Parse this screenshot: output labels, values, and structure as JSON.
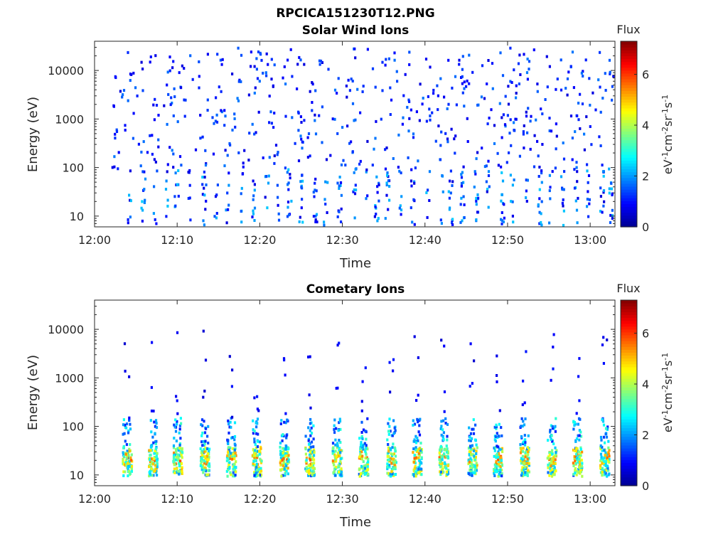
{
  "figure_title": "RPCICA151230T12.PNG",
  "colors": {
    "colormap": [
      "#00008f",
      "#0000ff",
      "#0080ff",
      "#00ffff",
      "#80ff80",
      "#ffff00",
      "#ff8000",
      "#ff0000",
      "#800000"
    ]
  },
  "chart_data": [
    {
      "type": "heatmap",
      "title": "Solar Wind Ions",
      "xlabel": "Time",
      "ylabel": "Energy (eV)",
      "xlim": [
        "12:00",
        "13:03"
      ],
      "ylim": [
        6,
        40000
      ],
      "yscale": "log",
      "x_ticks": [
        "12:00",
        "12:10",
        "12:20",
        "12:30",
        "12:40",
        "12:50",
        "13:00"
      ],
      "y_ticks": [
        10,
        100,
        1000,
        10000
      ],
      "y_tick_labels": [
        "10",
        "100",
        "1000",
        "10000"
      ],
      "colorbar": {
        "title": "Flux",
        "label": "eV-1cm-2sr-1s-1",
        "range": [
          0,
          7.3
        ],
        "ticks": [
          0,
          2,
          4,
          6
        ]
      },
      "pattern": "sparse dots at 100-40000 eV with denser low-flux columns below 40 eV"
    },
    {
      "type": "heatmap",
      "title": "Cometary Ions",
      "xlabel": "Time",
      "ylabel": "Energy (eV)",
      "xlim": [
        "12:00",
        "13:03"
      ],
      "ylim": [
        6,
        40000
      ],
      "yscale": "log",
      "x_ticks": [
        "12:00",
        "12:10",
        "12:20",
        "12:30",
        "12:40",
        "12:50",
        "13:00"
      ],
      "y_ticks": [
        10,
        100,
        1000,
        10000
      ],
      "y_tick_labels": [
        "10",
        "100",
        "1000",
        "10000"
      ],
      "colorbar": {
        "title": "Flux",
        "label": "eV-1cm-2sr-1s-1",
        "range": [
          0,
          7.3
        ],
        "ticks": [
          0,
          2,
          4,
          6
        ]
      },
      "burst_times": [
        "12:03.8",
        "12:06.9",
        "12:09.9",
        "12:13.2",
        "12:16.4",
        "12:19.5",
        "12:22.8",
        "12:25.9",
        "12:29.2",
        "12:32.4",
        "12:35.8",
        "12:38.9",
        "12:42.1",
        "12:45.6",
        "12:48.7",
        "12:51.9",
        "12:55.2",
        "12:58.3",
        "13:01.6"
      ],
      "pattern": "periodic bursts of high flux at 10-40 eV"
    }
  ]
}
